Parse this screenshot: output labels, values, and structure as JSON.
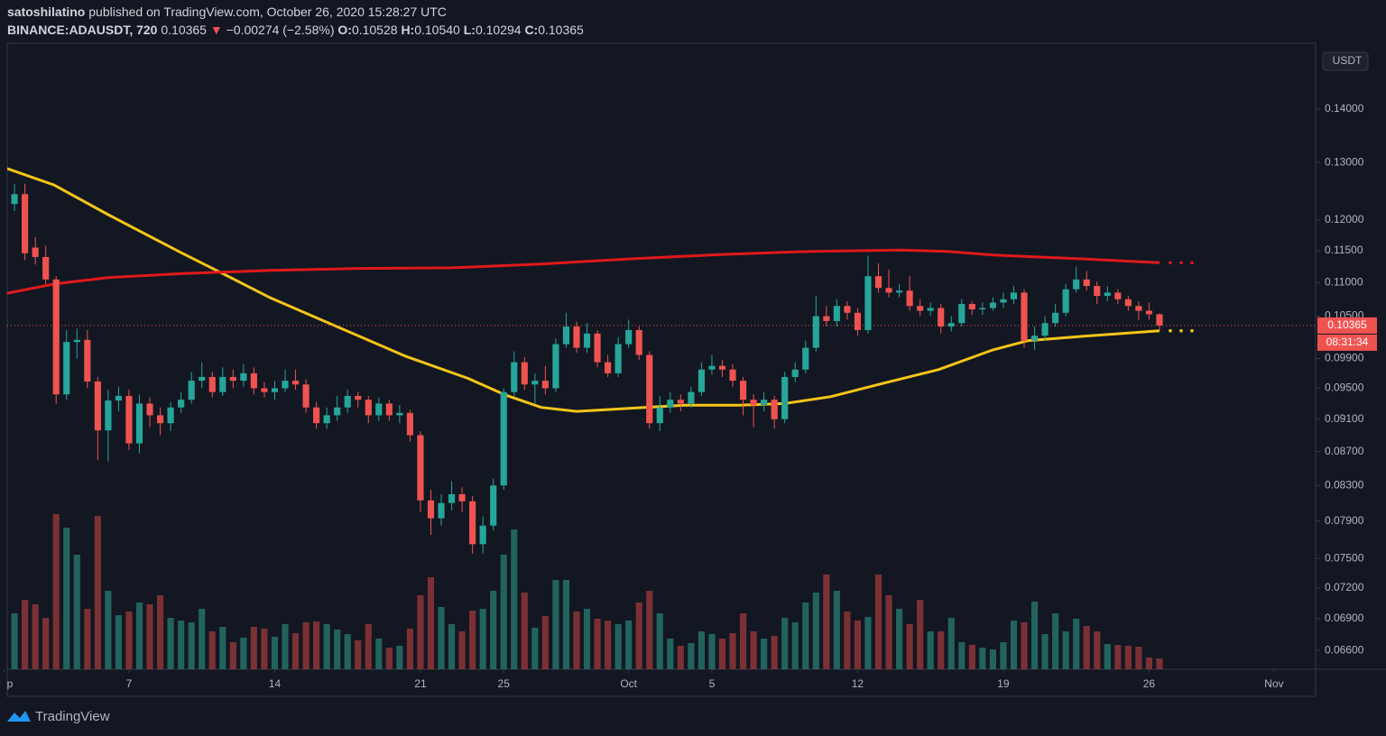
{
  "chart_data": {
    "type": "candlestick",
    "header": {
      "author": "satoshilatino",
      "published": "published on TradingView.com, October 26, 2020 15:28:27 UTC",
      "symbol": "BINANCE:ADAUSDT, 720",
      "last": "0.10365",
      "arrow": "▼",
      "change": "−0.00274 (−2.58%)",
      "ohlc": [
        {
          "label": "O:",
          "value": "0.10528"
        },
        {
          "label": "H:",
          "value": "0.10540"
        },
        {
          "label": "L:",
          "value": "0.10294"
        },
        {
          "label": "C:",
          "value": "0.10365"
        }
      ]
    },
    "currency": "USDT",
    "countdown": "08:31:34",
    "footer": "TradingView",
    "log_scale": true,
    "up_color": "#26a69a",
    "down_color": "#ef5350",
    "volume_up_color": "#22635e",
    "volume_down_color": "#7b3134",
    "x": [
      0.5,
      1,
      1.5,
      2,
      2.5,
      3,
      3.5,
      4,
      4.5,
      5,
      5.5,
      6,
      6.5,
      7,
      7.5,
      8,
      8.5,
      9,
      9.5,
      10,
      10.5,
      11,
      11.5,
      12,
      12.5,
      13,
      13.5,
      14,
      14.5,
      15,
      15.5,
      16,
      16.5,
      17,
      17.5,
      18,
      18.5,
      19,
      19.5,
      20,
      20.5,
      21,
      21.5,
      22,
      22.5,
      23,
      23.5,
      24,
      24.5,
      25,
      25.5,
      26,
      26.5,
      27,
      27.5,
      28,
      28.5,
      29,
      29.5,
      30,
      30.5,
      31,
      31.5,
      32,
      32.5,
      33,
      33.5,
      34,
      34.5,
      35,
      35.5,
      36,
      36.5,
      37,
      37.5,
      38,
      38.5,
      39,
      39.5,
      40,
      40.5,
      41,
      41.5,
      42,
      42.5,
      43,
      43.5,
      44,
      44.5,
      45,
      45.5,
      46,
      46.5,
      47,
      47.5,
      48,
      48.5,
      49,
      49.5,
      50,
      50.5,
      51,
      51.5,
      52,
      52.5,
      53,
      53.5,
      54,
      54.5,
      55,
      55.5
    ],
    "open": [
      0.1227,
      0.1244,
      0.1155,
      0.114,
      0.1105,
      0.0942,
      0.1013,
      0.1016,
      0.0959,
      0.0896,
      0.0934,
      0.094,
      0.088,
      0.093,
      0.0915,
      0.0905,
      0.0925,
      0.0935,
      0.096,
      0.0965,
      0.0945,
      0.0965,
      0.096,
      0.097,
      0.095,
      0.0945,
      0.095,
      0.096,
      0.0955,
      0.0925,
      0.0905,
      0.0915,
      0.0925,
      0.094,
      0.0935,
      0.0915,
      0.093,
      0.0915,
      0.0918,
      0.089,
      0.0813,
      0.0793,
      0.081,
      0.082,
      0.0812,
      0.0765,
      0.0785,
      0.083,
      0.0945,
      0.0985,
      0.0955,
      0.096,
      0.095,
      0.101,
      0.1035,
      0.1005,
      0.1025,
      0.0985,
      0.097,
      0.101,
      0.103,
      0.0995,
      0.0905,
      0.0925,
      0.0935,
      0.093,
      0.0945,
      0.0975,
      0.098,
      0.0975,
      0.096,
      0.0935,
      0.0928,
      0.0935,
      0.091,
      0.0965,
      0.0975,
      0.1005,
      0.105,
      0.1043,
      0.1065,
      0.1055,
      0.103,
      0.111,
      0.1092,
      0.1085,
      0.1088,
      0.1065,
      0.1058,
      0.1062,
      0.1035,
      0.104,
      0.1068,
      0.106,
      0.1062,
      0.107,
      0.1075,
      0.1085,
      0.1015,
      0.1022,
      0.104,
      0.1055,
      0.109,
      0.1105,
      0.1095,
      0.108,
      0.1085,
      0.1075,
      0.1065,
      0.1058,
      0.10528
    ],
    "high": [
      0.1262,
      0.1262,
      0.1172,
      0.1158,
      0.111,
      0.103,
      0.1032,
      0.103,
      0.0965,
      0.0948,
      0.0952,
      0.0948,
      0.0942,
      0.0938,
      0.0925,
      0.0932,
      0.0945,
      0.0972,
      0.0985,
      0.0972,
      0.0978,
      0.0975,
      0.0982,
      0.0978,
      0.0958,
      0.096,
      0.0975,
      0.0975,
      0.0962,
      0.0932,
      0.0925,
      0.094,
      0.0948,
      0.0945,
      0.094,
      0.0938,
      0.0935,
      0.0928,
      0.0922,
      0.0895,
      0.0825,
      0.082,
      0.0835,
      0.0828,
      0.0818,
      0.0795,
      0.0838,
      0.095,
      0.1,
      0.0992,
      0.097,
      0.098,
      0.1018,
      0.1055,
      0.1042,
      0.104,
      0.103,
      0.0995,
      0.102,
      0.1045,
      0.1035,
      0.1,
      0.094,
      0.0945,
      0.0942,
      0.0952,
      0.0985,
      0.0995,
      0.0988,
      0.0982,
      0.0965,
      0.0942,
      0.0945,
      0.094,
      0.0972,
      0.0985,
      0.1015,
      0.108,
      0.1065,
      0.1075,
      0.1072,
      0.1062,
      0.1142,
      0.113,
      0.112,
      0.1098,
      0.111,
      0.1075,
      0.107,
      0.1068,
      0.105,
      0.1075,
      0.1072,
      0.107,
      0.1078,
      0.1085,
      0.1095,
      0.109,
      0.1035,
      0.105,
      0.1068,
      0.1098,
      0.1125,
      0.1118,
      0.1102,
      0.1095,
      0.109,
      0.108,
      0.1072,
      0.107,
      0.1054
    ],
    "low": [
      0.1215,
      0.1135,
      0.1128,
      0.1098,
      0.093,
      0.0935,
      0.099,
      0.095,
      0.086,
      0.0858,
      0.092,
      0.0872,
      0.0868,
      0.09,
      0.089,
      0.0895,
      0.0918,
      0.093,
      0.095,
      0.0938,
      0.094,
      0.095,
      0.0952,
      0.0942,
      0.0938,
      0.0935,
      0.0945,
      0.0948,
      0.0918,
      0.0898,
      0.0898,
      0.0908,
      0.0918,
      0.0925,
      0.0905,
      0.0908,
      0.0908,
      0.0905,
      0.0882,
      0.08,
      0.0775,
      0.0785,
      0.0802,
      0.08,
      0.0755,
      0.0755,
      0.078,
      0.0825,
      0.094,
      0.0948,
      0.093,
      0.0942,
      0.0945,
      0.1005,
      0.0998,
      0.0998,
      0.0978,
      0.0965,
      0.0965,
      0.1005,
      0.0988,
      0.0898,
      0.0895,
      0.0918,
      0.092,
      0.0925,
      0.094,
      0.0968,
      0.0965,
      0.0952,
      0.0915,
      0.09,
      0.092,
      0.0898,
      0.0905,
      0.0958,
      0.097,
      0.1,
      0.1035,
      0.1035,
      0.1045,
      0.1022,
      0.1025,
      0.1085,
      0.1078,
      0.1078,
      0.1058,
      0.105,
      0.105,
      0.1025,
      0.1028,
      0.1035,
      0.1052,
      0.1052,
      0.1058,
      0.1062,
      0.1068,
      0.1005,
      0.1002,
      0.1015,
      0.1035,
      0.105,
      0.1085,
      0.1088,
      0.1068,
      0.1072,
      0.1068,
      0.1058,
      0.1045,
      0.1045,
      0.10294
    ],
    "close": [
      0.1244,
      0.1146,
      0.114,
      0.1105,
      0.0942,
      0.1013,
      0.1016,
      0.0959,
      0.0896,
      0.0934,
      0.094,
      0.088,
      0.093,
      0.0915,
      0.0905,
      0.0925,
      0.0935,
      0.096,
      0.0965,
      0.0945,
      0.0965,
      0.096,
      0.097,
      0.095,
      0.0945,
      0.095,
      0.096,
      0.0955,
      0.0925,
      0.0905,
      0.0915,
      0.0925,
      0.094,
      0.0935,
      0.0915,
      0.093,
      0.0915,
      0.0918,
      0.089,
      0.0813,
      0.0793,
      0.081,
      0.082,
      0.0812,
      0.0765,
      0.0785,
      0.083,
      0.0945,
      0.0985,
      0.0955,
      0.096,
      0.095,
      0.101,
      0.1035,
      0.1005,
      0.1025,
      0.0985,
      0.097,
      0.101,
      0.103,
      0.0995,
      0.0905,
      0.0925,
      0.0935,
      0.093,
      0.0945,
      0.0975,
      0.098,
      0.0975,
      0.096,
      0.0935,
      0.0928,
      0.0935,
      0.091,
      0.0965,
      0.0975,
      0.1005,
      0.105,
      0.1043,
      0.1065,
      0.1055,
      0.103,
      0.111,
      0.1092,
      0.1085,
      0.1088,
      0.1065,
      0.1058,
      0.1062,
      0.1035,
      0.104,
      0.1068,
      0.106,
      0.1062,
      0.107,
      0.1075,
      0.1085,
      0.1015,
      0.1022,
      0.104,
      0.1055,
      0.109,
      0.1105,
      0.1095,
      0.108,
      0.1085,
      0.1075,
      0.1065,
      0.1058,
      0.10528,
      0.10365
    ],
    "volume": [
      62,
      77,
      72,
      57,
      172,
      157,
      127,
      67,
      170,
      87,
      60,
      64,
      74,
      72,
      82,
      57,
      54,
      52,
      67,
      42,
      47,
      30,
      35,
      47,
      45,
      36,
      50,
      40,
      52,
      53,
      50,
      44,
      39,
      32,
      50,
      34,
      24,
      26,
      45,
      82,
      102,
      69,
      50,
      42,
      65,
      67,
      87,
      127,
      155,
      85,
      46,
      59,
      99,
      99,
      64,
      67,
      56,
      54,
      50,
      54,
      74,
      87,
      62,
      34,
      26,
      29,
      42,
      39,
      34,
      40,
      62,
      42,
      34,
      37,
      57,
      52,
      74,
      85,
      105,
      87,
      64,
      54,
      58,
      105,
      82,
      67,
      50,
      77,
      42,
      42,
      57,
      30,
      27,
      24,
      22,
      30,
      54,
      52,
      75,
      39,
      62,
      42,
      56,
      48,
      42,
      28,
      27,
      26,
      25,
      13,
      12
    ],
    "moving_averages": [
      {
        "color": "#f5c518",
        "x": [
          0.15,
          2.4,
          5.0,
          8.5,
          10.2,
          12.8,
          16.3,
          19.3,
          22.3,
          24.1,
          25.8,
          27.5,
          30.1,
          32.7,
          35.3,
          37.5,
          39.7,
          42.3,
          44.9,
          47.5,
          49.2,
          51.8,
          55.5
        ],
        "values": [
          0.1289,
          0.126,
          0.1209,
          0.1147,
          0.1119,
          0.1077,
          0.1031,
          0.0993,
          0.0963,
          0.0941,
          0.0925,
          0.092,
          0.0924,
          0.0928,
          0.0928,
          0.093,
          0.0939,
          0.0957,
          0.0975,
          0.1002,
          0.1015,
          0.1021,
          0.1029
        ]
      },
      {
        "color": "#e0191b",
        "x": [
          0.15,
          2.4,
          5.0,
          8.5,
          12.8,
          17.1,
          21.5,
          25.8,
          30.1,
          34.5,
          38.8,
          43.1,
          45.3,
          47.5,
          51.8,
          55.5
        ],
        "values": [
          0.1084,
          0.1098,
          0.1108,
          0.1114,
          0.1119,
          0.1122,
          0.1123,
          0.1129,
          0.1137,
          0.1144,
          0.1149,
          0.1151,
          0.1149,
          0.1143,
          0.1137,
          0.1131
        ]
      }
    ],
    "xlim": [
      0.15,
      63
    ],
    "xticks": [
      {
        "value": 0,
        "label": "p"
      },
      {
        "value": 6,
        "label": "7"
      },
      {
        "value": 13,
        "label": "14"
      },
      {
        "value": 20,
        "label": "21"
      },
      {
        "value": 24,
        "label": "25"
      },
      {
        "value": 30,
        "label": "Oct"
      },
      {
        "value": 34,
        "label": "5"
      },
      {
        "value": 41,
        "label": "12"
      },
      {
        "value": 48,
        "label": "19"
      },
      {
        "value": 55,
        "label": "26"
      },
      {
        "value": 61,
        "label": "Nov"
      }
    ],
    "ylim": [
      0.0643,
      0.1534
    ],
    "yticks": [
      {
        "value": 0.14,
        "label": "0.14000"
      },
      {
        "value": 0.13,
        "label": "0.13000"
      },
      {
        "value": 0.12,
        "label": "0.12000"
      },
      {
        "value": 0.115,
        "label": "0.11500"
      },
      {
        "value": 0.11,
        "label": "0.11000"
      },
      {
        "value": 0.105,
        "label": "0.10500"
      },
      {
        "value": 0.099,
        "label": "0.09900"
      },
      {
        "value": 0.095,
        "label": "0.09500"
      },
      {
        "value": 0.091,
        "label": "0.09100"
      },
      {
        "value": 0.087,
        "label": "0.08700"
      },
      {
        "value": 0.083,
        "label": "0.08300"
      },
      {
        "value": 0.079,
        "label": "0.07900"
      },
      {
        "value": 0.075,
        "label": "0.07500"
      },
      {
        "value": 0.072,
        "label": "0.07200"
      },
      {
        "value": 0.069,
        "label": "0.06900"
      },
      {
        "value": 0.066,
        "label": "0.06600"
      }
    ]
  }
}
